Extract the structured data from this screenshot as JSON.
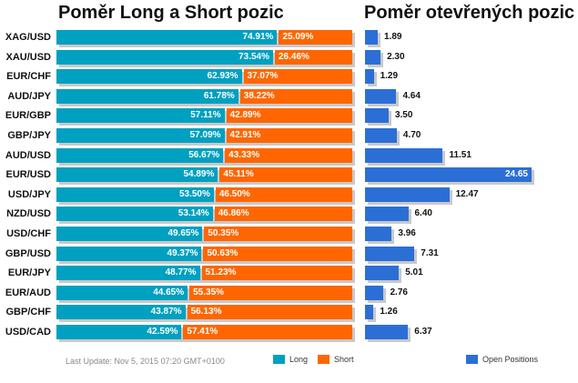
{
  "titles": {
    "left": "Poměr Long a Short pozic",
    "right": "Poměr otevřených pozic"
  },
  "footer": {
    "last_update": "Last Update: Nov 5, 2015 07:20 GMT+0100"
  },
  "legend": {
    "long": "Long",
    "short": "Short",
    "open_positions": "Open Positions"
  },
  "colors": {
    "long": "#00a0c0",
    "short": "#ff6600",
    "open_positions": "#2b6fd6",
    "shadow": "#c9c9c9"
  },
  "chart_data": [
    {
      "type": "bar",
      "orientation": "horizontal",
      "stacked": true,
      "title": "Poměr Long a Short pozic",
      "categories": [
        "XAG/USD",
        "XAU/USD",
        "EUR/CHF",
        "AUD/JPY",
        "EUR/GBP",
        "GBP/JPY",
        "AUD/USD",
        "EUR/USD",
        "USD/JPY",
        "NZD/USD",
        "USD/CHF",
        "GBP/USD",
        "EUR/JPY",
        "EUR/AUD",
        "GBP/CHF",
        "USD/CAD"
      ],
      "series": [
        {
          "name": "Long",
          "values": [
            74.91,
            73.54,
            62.93,
            61.78,
            57.11,
            57.09,
            56.67,
            54.89,
            53.5,
            53.14,
            49.65,
            49.37,
            48.77,
            44.65,
            43.87,
            42.59
          ],
          "labels": [
            "74.91%",
            "73.54%",
            "62.93%",
            "61.78%",
            "57.11%",
            "57.09%",
            "56.67%",
            "54.89%",
            "53.50%",
            "53.14%",
            "49.65%",
            "49.37%",
            "48.77%",
            "44.65%",
            "43.87%",
            "42.59%"
          ]
        },
        {
          "name": "Short",
          "values": [
            25.09,
            26.46,
            37.07,
            38.22,
            42.89,
            42.91,
            43.33,
            45.11,
            46.5,
            46.86,
            50.35,
            50.63,
            51.23,
            55.35,
            56.13,
            57.41
          ],
          "labels": [
            "25.09%",
            "26.46%",
            "37.07%",
            "38.22%",
            "42.89%",
            "42.91%",
            "43.33%",
            "45.11%",
            "46.50%",
            "46.86%",
            "50.35%",
            "50.63%",
            "51.23%",
            "55.35%",
            "56.13%",
            "57.41%"
          ]
        }
      ],
      "xlim": [
        0,
        100
      ],
      "grid": false,
      "legend_position": "bottom"
    },
    {
      "type": "bar",
      "orientation": "horizontal",
      "title": "Poměr otevřených pozic",
      "categories": [
        "XAG/USD",
        "XAU/USD",
        "EUR/CHF",
        "AUD/JPY",
        "EUR/GBP",
        "GBP/JPY",
        "AUD/USD",
        "EUR/USD",
        "USD/JPY",
        "NZD/USD",
        "USD/CHF",
        "GBP/USD",
        "EUR/JPY",
        "EUR/AUD",
        "GBP/CHF",
        "USD/CAD"
      ],
      "series": [
        {
          "name": "Open Positions",
          "values": [
            1.89,
            2.3,
            1.29,
            4.64,
            3.5,
            4.7,
            11.51,
            24.65,
            12.47,
            6.4,
            3.96,
            7.31,
            5.01,
            2.76,
            1.26,
            6.37
          ],
          "labels": [
            "1.89",
            "2.30",
            "1.29",
            "4.64",
            "3.50",
            "4.70",
            "11.51",
            "24.65",
            "12.47",
            "6.40",
            "3.96",
            "7.31",
            "5.01",
            "2.76",
            "1.26",
            "6.37"
          ]
        }
      ],
      "xlim": [
        0,
        24.65
      ],
      "grid": false,
      "legend_position": "bottom"
    }
  ]
}
